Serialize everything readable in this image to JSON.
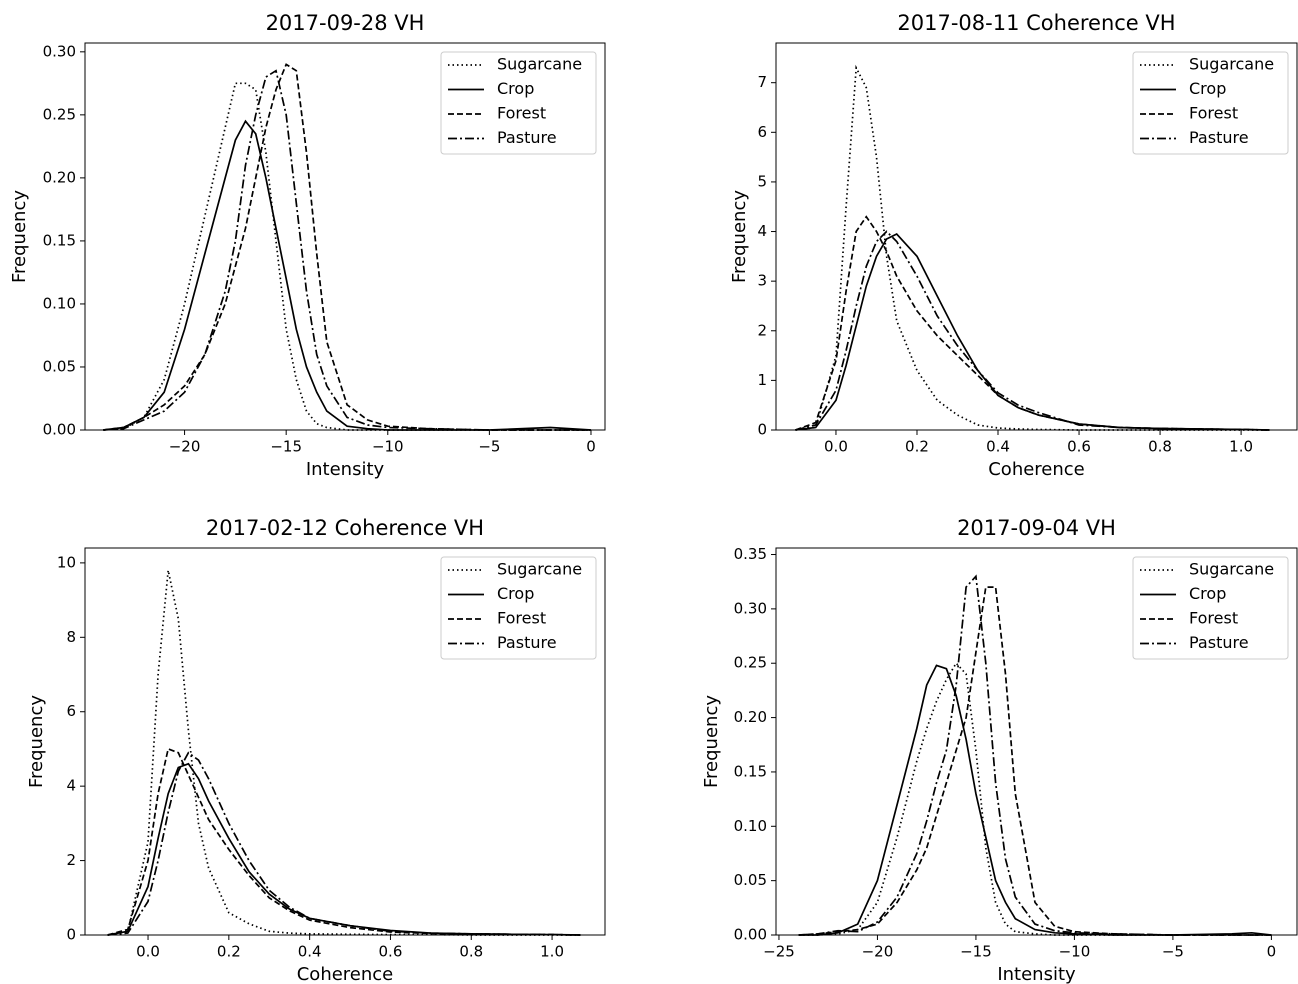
{
  "chart_data": [
    {
      "type": "line",
      "title": "2017-09-28 VH",
      "x_label": "Intensity",
      "y_label": "Frequency",
      "legend": "upper right",
      "xlim": [
        -24.9,
        0.69
      ],
      "ylim": [
        0,
        0.307
      ],
      "xticks": [
        {
          "value": -20,
          "label": "−20"
        },
        {
          "value": -15,
          "label": "−15"
        },
        {
          "value": -10,
          "label": "−10"
        },
        {
          "value": -5,
          "label": "−5"
        },
        0
      ],
      "yticks": [
        {
          "value": 0,
          "label": "0.00"
        },
        {
          "value": 0.05,
          "label": "0.05"
        },
        {
          "value": 0.1,
          "label": "0.10"
        },
        {
          "value": 0.15,
          "label": "0.15"
        },
        {
          "value": 0.2,
          "label": "0.20"
        },
        {
          "value": 0.25,
          "label": "0.25"
        },
        {
          "value": 0.3,
          "label": "0.30"
        }
      ],
      "x": [
        -24,
        -23,
        -22,
        -21,
        -20,
        -19,
        -18,
        -17.5,
        -17,
        -16.5,
        -16,
        -15.5,
        -15,
        -14.5,
        -14,
        -13.5,
        -13,
        -12,
        -11,
        -10,
        -8,
        -5,
        -2,
        0
      ],
      "series": [
        {
          "name": "Sugarcane",
          "color": "#000000",
          "linestyle": "dotted",
          "values": [
            0,
            0.001,
            0.01,
            0.04,
            0.1,
            0.17,
            0.24,
            0.275,
            0.275,
            0.27,
            0.22,
            0.15,
            0.08,
            0.04,
            0.015,
            0.005,
            0.002,
            0,
            0,
            0,
            0,
            0,
            0,
            0
          ]
        },
        {
          "name": "Crop",
          "color": "#000000",
          "linestyle": "solid",
          "values": [
            0,
            0.002,
            0.01,
            0.03,
            0.08,
            0.14,
            0.2,
            0.23,
            0.245,
            0.235,
            0.2,
            0.16,
            0.12,
            0.08,
            0.05,
            0.03,
            0.015,
            0.003,
            0.001,
            0,
            0,
            0,
            0.002,
            0
          ]
        },
        {
          "name": "Forest",
          "color": "#000000",
          "linestyle": "dashed",
          "values": [
            0,
            0.002,
            0.01,
            0.02,
            0.035,
            0.06,
            0.1,
            0.13,
            0.16,
            0.2,
            0.24,
            0.27,
            0.29,
            0.285,
            0.22,
            0.14,
            0.07,
            0.02,
            0.008,
            0.003,
            0.001,
            0,
            0,
            0
          ]
        },
        {
          "name": "Pasture",
          "color": "#000000",
          "linestyle": "dashdot",
          "values": [
            0,
            0.001,
            0.008,
            0.015,
            0.03,
            0.06,
            0.11,
            0.15,
            0.21,
            0.25,
            0.28,
            0.285,
            0.25,
            0.18,
            0.11,
            0.06,
            0.035,
            0.01,
            0.004,
            0.002,
            0.001,
            0,
            0,
            0
          ]
        }
      ]
    },
    {
      "type": "line",
      "title": "2017-08-11 Coherence VH",
      "x_label": "Coherence",
      "y_label": "Frequency",
      "legend": "upper right",
      "xlim": [
        -0.148,
        1.138
      ],
      "ylim": [
        0,
        7.8
      ],
      "xticks": [
        {
          "value": 0,
          "label": "0.0"
        },
        0.2,
        0.4,
        0.6,
        0.8,
        {
          "value": 1,
          "label": "1.0"
        }
      ],
      "yticks": [
        0,
        1,
        2,
        3,
        4,
        5,
        6,
        7
      ],
      "x": [
        -0.1,
        -0.05,
        0,
        0.025,
        0.05,
        0.075,
        0.1,
        0.125,
        0.15,
        0.2,
        0.25,
        0.3,
        0.35,
        0.4,
        0.45,
        0.5,
        0.6,
        0.7,
        0.8,
        0.9,
        1.0,
        1.07
      ],
      "series": [
        {
          "name": "Sugarcane",
          "color": "#000000",
          "linestyle": "dotted",
          "values": [
            0,
            0.05,
            1.5,
            4.5,
            7.3,
            6.9,
            5.5,
            3.5,
            2.2,
            1.2,
            0.6,
            0.3,
            0.1,
            0.04,
            0.02,
            0.01,
            0,
            0,
            0,
            0,
            0,
            0
          ]
        },
        {
          "name": "Crop",
          "color": "#000000",
          "linestyle": "solid",
          "values": [
            0,
            0.05,
            0.6,
            1.3,
            2.1,
            2.9,
            3.5,
            3.85,
            3.95,
            3.5,
            2.7,
            1.9,
            1.2,
            0.7,
            0.45,
            0.3,
            0.12,
            0.05,
            0.03,
            0.02,
            0.01,
            0
          ]
        },
        {
          "name": "Forest",
          "color": "#000000",
          "linestyle": "dashed",
          "values": [
            0,
            0.15,
            1.4,
            2.8,
            4.0,
            4.3,
            4.0,
            3.6,
            3.1,
            2.4,
            1.9,
            1.5,
            1.1,
            0.7,
            0.45,
            0.3,
            0.12,
            0.05,
            0.03,
            0.02,
            0.01,
            0
          ]
        },
        {
          "name": "Pasture",
          "color": "#000000",
          "linestyle": "dashdot",
          "values": [
            0,
            0.1,
            0.8,
            1.6,
            2.5,
            3.3,
            3.8,
            4.0,
            3.8,
            3.1,
            2.3,
            1.7,
            1.2,
            0.75,
            0.5,
            0.35,
            0.1,
            0.05,
            0.03,
            0.02,
            0.01,
            0
          ]
        }
      ]
    },
    {
      "type": "line",
      "title": "2017-02-12 Coherence VH",
      "x_label": "Coherence",
      "y_label": "Frequency",
      "legend": "upper right",
      "xlim": [
        -0.156,
        1.131
      ],
      "ylim": [
        0,
        10.4
      ],
      "xticks": [
        {
          "value": 0,
          "label": "0.0"
        },
        0.2,
        0.4,
        0.6,
        0.8,
        {
          "value": 1,
          "label": "1.0"
        }
      ],
      "yticks": [
        0,
        2,
        4,
        6,
        8,
        10
      ],
      "x": [
        -0.1,
        -0.05,
        0,
        0.025,
        0.05,
        0.075,
        0.1,
        0.125,
        0.15,
        0.2,
        0.25,
        0.3,
        0.35,
        0.4,
        0.5,
        0.6,
        0.7,
        0.8,
        0.9,
        1.0,
        1.07
      ],
      "series": [
        {
          "name": "Sugarcane",
          "color": "#000000",
          "linestyle": "dotted",
          "values": [
            0,
            0.1,
            2.5,
            7.0,
            9.8,
            8.5,
            5.5,
            3.0,
            1.8,
            0.6,
            0.3,
            0.1,
            0.05,
            0.03,
            0.02,
            0.01,
            0.01,
            0,
            0,
            0,
            0
          ]
        },
        {
          "name": "Crop",
          "color": "#000000",
          "linestyle": "solid",
          "values": [
            0,
            0.1,
            1.3,
            2.6,
            3.8,
            4.5,
            4.6,
            4.2,
            3.6,
            2.6,
            1.7,
            1.1,
            0.7,
            0.45,
            0.25,
            0.12,
            0.05,
            0.03,
            0.02,
            0.01,
            0
          ]
        },
        {
          "name": "Forest",
          "color": "#000000",
          "linestyle": "dashed",
          "values": [
            0,
            0.15,
            2.0,
            3.8,
            5.0,
            4.9,
            4.3,
            3.7,
            3.1,
            2.3,
            1.6,
            1.0,
            0.65,
            0.4,
            0.2,
            0.08,
            0.04,
            0.03,
            0.02,
            0.01,
            0
          ]
        },
        {
          "name": "Pasture",
          "color": "#000000",
          "linestyle": "dashdot",
          "values": [
            0,
            0.05,
            0.9,
            2.0,
            3.3,
            4.4,
            4.9,
            4.7,
            4.2,
            3.0,
            2.0,
            1.2,
            0.75,
            0.45,
            0.25,
            0.1,
            0.05,
            0.03,
            0.02,
            0.01,
            0
          ]
        }
      ]
    },
    {
      "type": "line",
      "title": "2017-09-04 VH",
      "x_label": "Intensity",
      "y_label": "Frequency",
      "legend": "upper right",
      "xlim": [
        -25.15,
        1.3
      ],
      "ylim": [
        0,
        0.356
      ],
      "xticks": [
        {
          "value": -25,
          "label": "−25"
        },
        {
          "value": -20,
          "label": "−20"
        },
        {
          "value": -15,
          "label": "−15"
        },
        {
          "value": -10,
          "label": "−10"
        },
        {
          "value": -5,
          "label": "−5"
        },
        0
      ],
      "yticks": [
        {
          "value": 0,
          "label": "0.00"
        },
        {
          "value": 0.05,
          "label": "0.05"
        },
        {
          "value": 0.1,
          "label": "0.10"
        },
        {
          "value": 0.15,
          "label": "0.15"
        },
        {
          "value": 0.2,
          "label": "0.20"
        },
        {
          "value": 0.25,
          "label": "0.25"
        },
        {
          "value": 0.3,
          "label": "0.30"
        },
        {
          "value": 0.35,
          "label": "0.35"
        }
      ],
      "x": [
        -24,
        -23,
        -22,
        -21,
        -20,
        -19,
        -18,
        -17.5,
        -17,
        -16.5,
        -16,
        -15.5,
        -15,
        -14.5,
        -14,
        -13.5,
        -13,
        -12,
        -11,
        -10,
        -8,
        -5,
        -2,
        -1,
        0
      ],
      "series": [
        {
          "name": "Sugarcane",
          "color": "#000000",
          "linestyle": "dotted",
          "values": [
            0,
            0,
            0.001,
            0.005,
            0.03,
            0.09,
            0.16,
            0.19,
            0.215,
            0.235,
            0.25,
            0.24,
            0.17,
            0.08,
            0.03,
            0.01,
            0.003,
            0.001,
            0,
            0,
            0,
            0,
            0,
            0,
            0
          ]
        },
        {
          "name": "Crop",
          "color": "#000000",
          "linestyle": "solid",
          "values": [
            0,
            0,
            0.002,
            0.01,
            0.05,
            0.12,
            0.19,
            0.23,
            0.248,
            0.245,
            0.22,
            0.18,
            0.13,
            0.09,
            0.05,
            0.03,
            0.015,
            0.005,
            0.002,
            0.001,
            0,
            0,
            0.001,
            0.002,
            0
          ]
        },
        {
          "name": "Forest",
          "color": "#000000",
          "linestyle": "dashed",
          "values": [
            0,
            0.001,
            0.003,
            0.005,
            0.01,
            0.03,
            0.06,
            0.08,
            0.11,
            0.14,
            0.17,
            0.2,
            0.26,
            0.32,
            0.32,
            0.24,
            0.13,
            0.03,
            0.008,
            0.003,
            0.001,
            0,
            0,
            0,
            0
          ]
        },
        {
          "name": "Pasture",
          "color": "#000000",
          "linestyle": "dashdot",
          "values": [
            0,
            0.001,
            0.004,
            0.003,
            0.012,
            0.035,
            0.075,
            0.105,
            0.14,
            0.17,
            0.23,
            0.32,
            0.33,
            0.25,
            0.14,
            0.07,
            0.035,
            0.01,
            0.004,
            0.002,
            0.001,
            0,
            0,
            0,
            0
          ]
        }
      ]
    }
  ]
}
